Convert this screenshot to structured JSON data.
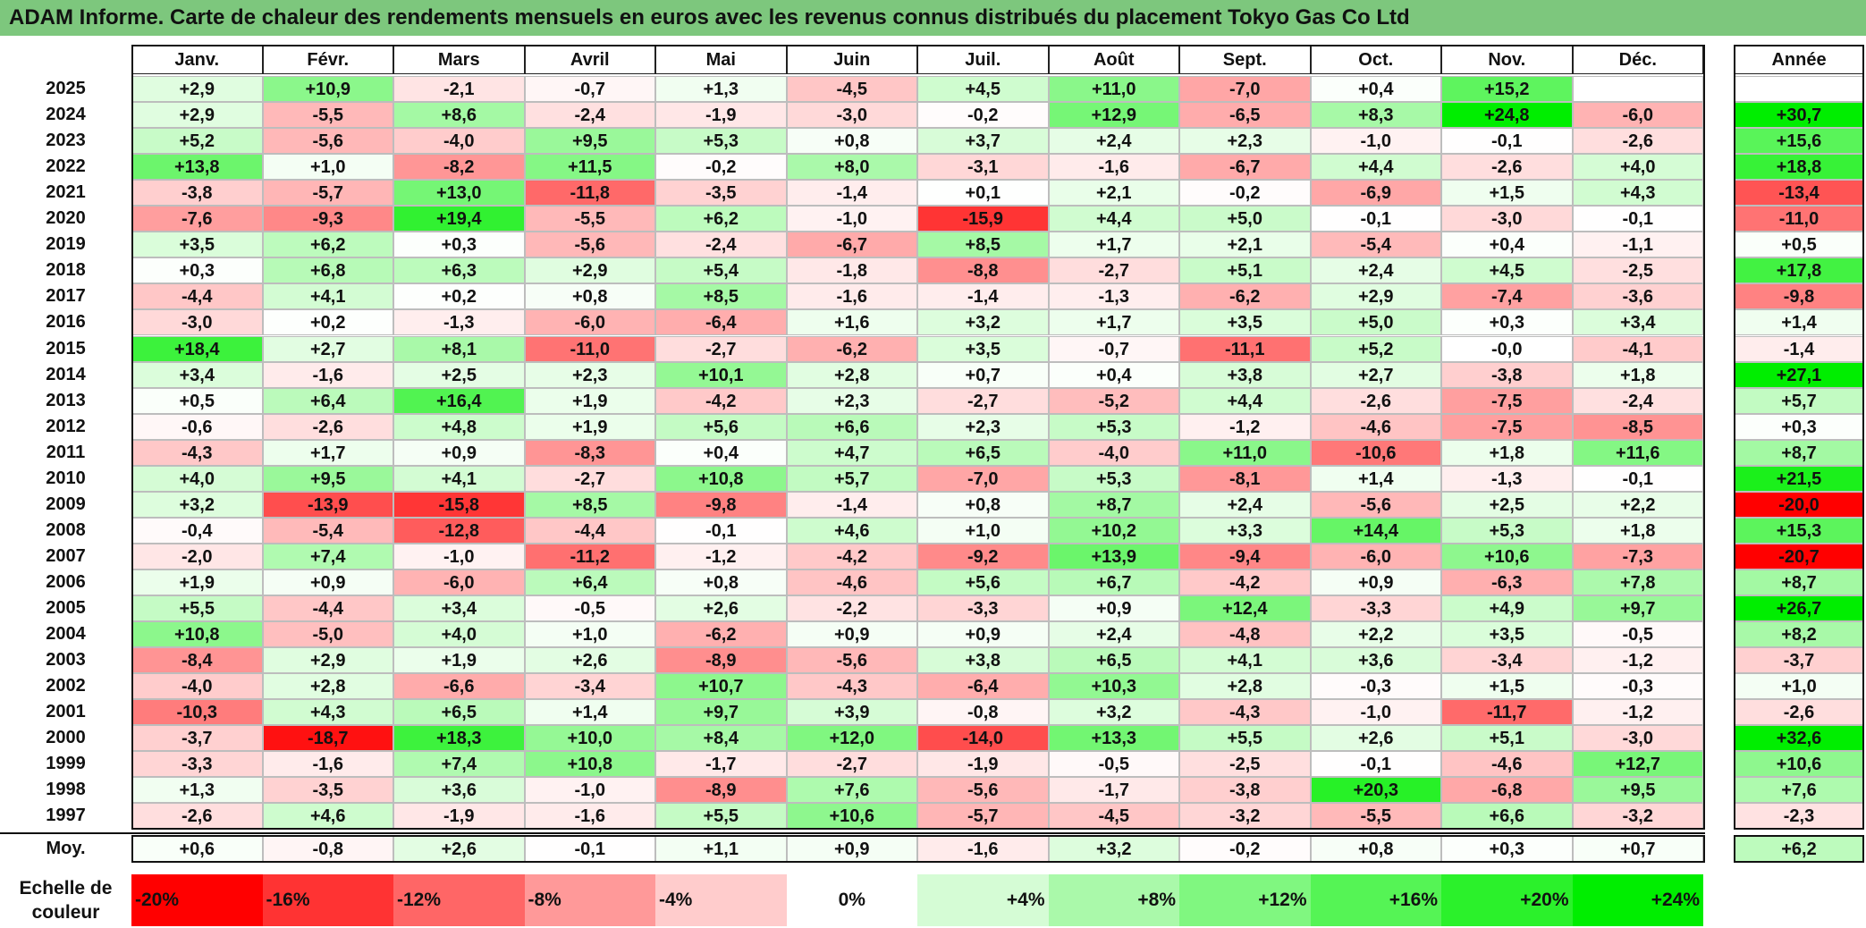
{
  "title": "ADAM Informe. Carte de chaleur des rendements mensuels en euros avec les revenus connus distribués du placement Tokyo Gas Co Ltd",
  "chart_data": {
    "type": "heatmap",
    "title": "ADAM Informe. Carte de chaleur des rendements mensuels en euros avec les revenus connus distribués du placement Tokyo Gas Co Ltd",
    "columns": [
      "Janv.",
      "Févr.",
      "Mars",
      "Avril",
      "Mai",
      "Juin",
      "Juil.",
      "Août",
      "Sept.",
      "Oct.",
      "Nov.",
      "Déc."
    ],
    "year_column_label": "Année",
    "average_row_label": "Moy.",
    "rows": [
      {
        "year": "2025",
        "values": [
          "+2,9",
          "+10,9",
          "-2,1",
          "-0,7",
          "+1,3",
          "-4,5",
          "+4,5",
          "+11,0",
          "-7,0",
          "+0,4",
          "+15,2",
          ""
        ],
        "annual": ""
      },
      {
        "year": "2024",
        "values": [
          "+2,9",
          "-5,5",
          "+8,6",
          "-2,4",
          "-1,9",
          "-3,0",
          "-0,2",
          "+12,9",
          "-6,5",
          "+8,3",
          "+24,8",
          "-6,0"
        ],
        "annual": "+30,7"
      },
      {
        "year": "2023",
        "values": [
          "+5,2",
          "-5,6",
          "-4,0",
          "+9,5",
          "+5,3",
          "+0,8",
          "+3,7",
          "+2,4",
          "+2,3",
          "-1,0",
          "-0,1",
          "-2,6"
        ],
        "annual": "+15,6"
      },
      {
        "year": "2022",
        "values": [
          "+13,8",
          "+1,0",
          "-8,2",
          "+11,5",
          "-0,2",
          "+8,0",
          "-3,1",
          "-1,6",
          "-6,7",
          "+4,4",
          "-2,6",
          "+4,0"
        ],
        "annual": "+18,8"
      },
      {
        "year": "2021",
        "values": [
          "-3,8",
          "-5,7",
          "+13,0",
          "-11,8",
          "-3,5",
          "-1,4",
          "+0,1",
          "+2,1",
          "-0,2",
          "-6,9",
          "+1,5",
          "+4,3"
        ],
        "annual": "-13,4"
      },
      {
        "year": "2020",
        "values": [
          "-7,6",
          "-9,3",
          "+19,4",
          "-5,5",
          "+6,2",
          "-1,0",
          "-15,9",
          "+4,4",
          "+5,0",
          "-0,1",
          "-3,0",
          "-0,1"
        ],
        "annual": "-11,0"
      },
      {
        "year": "2019",
        "values": [
          "+3,5",
          "+6,2",
          "+0,3",
          "-5,6",
          "-2,4",
          "-6,7",
          "+8,5",
          "+1,7",
          "+2,1",
          "-5,4",
          "+0,4",
          "-1,1"
        ],
        "annual": "+0,5"
      },
      {
        "year": "2018",
        "values": [
          "+0,3",
          "+6,8",
          "+6,3",
          "+2,9",
          "+5,4",
          "-1,8",
          "-8,8",
          "-2,7",
          "+5,1",
          "+2,4",
          "+4,5",
          "-2,5"
        ],
        "annual": "+17,8"
      },
      {
        "year": "2017",
        "values": [
          "-4,4",
          "+4,1",
          "+0,2",
          "+0,8",
          "+8,5",
          "-1,6",
          "-1,4",
          "-1,3",
          "-6,2",
          "+2,9",
          "-7,4",
          "-3,6"
        ],
        "annual": "-9,8"
      },
      {
        "year": "2016",
        "values": [
          "-3,0",
          "+0,2",
          "-1,3",
          "-6,0",
          "-6,4",
          "+1,6",
          "+3,2",
          "+1,7",
          "+3,5",
          "+5,0",
          "+0,3",
          "+3,4"
        ],
        "annual": "+1,4"
      },
      {
        "year": "2015",
        "values": [
          "+18,4",
          "+2,7",
          "+8,1",
          "-11,0",
          "-2,7",
          "-6,2",
          "+3,5",
          "-0,7",
          "-11,1",
          "+5,2",
          "-0,0",
          "-4,1"
        ],
        "annual": "-1,4"
      },
      {
        "year": "2014",
        "values": [
          "+3,4",
          "-1,6",
          "+2,5",
          "+2,3",
          "+10,1",
          "+2,8",
          "+0,7",
          "+0,4",
          "+3,8",
          "+2,7",
          "-3,8",
          "+1,8"
        ],
        "annual": "+27,1"
      },
      {
        "year": "2013",
        "values": [
          "+0,5",
          "+6,4",
          "+16,4",
          "+1,9",
          "-4,2",
          "+2,3",
          "-2,7",
          "-5,2",
          "+4,4",
          "-2,6",
          "-7,5",
          "-2,4"
        ],
        "annual": "+5,7"
      },
      {
        "year": "2012",
        "values": [
          "-0,6",
          "-2,6",
          "+4,8",
          "+1,9",
          "+5,6",
          "+6,6",
          "+2,3",
          "+5,3",
          "-1,2",
          "-4,6",
          "-7,5",
          "-8,5"
        ],
        "annual": "+0,3"
      },
      {
        "year": "2011",
        "values": [
          "-4,3",
          "+1,7",
          "+0,9",
          "-8,3",
          "+0,4",
          "+4,7",
          "+6,5",
          "-4,0",
          "+11,0",
          "-10,6",
          "+1,8",
          "+11,6"
        ],
        "annual": "+8,7"
      },
      {
        "year": "2010",
        "values": [
          "+4,0",
          "+9,5",
          "+4,1",
          "-2,7",
          "+10,8",
          "+5,7",
          "-7,0",
          "+5,3",
          "-8,1",
          "+1,4",
          "-1,3",
          "-0,1"
        ],
        "annual": "+21,5"
      },
      {
        "year": "2009",
        "values": [
          "+3,2",
          "-13,9",
          "-15,8",
          "+8,5",
          "-9,8",
          "-1,4",
          "+0,8",
          "+8,7",
          "+2,4",
          "-5,6",
          "+2,5",
          "+2,2"
        ],
        "annual": "-20,0"
      },
      {
        "year": "2008",
        "values": [
          "-0,4",
          "-5,4",
          "-12,8",
          "-4,4",
          "-0,1",
          "+4,6",
          "+1,0",
          "+10,2",
          "+3,3",
          "+14,4",
          "+5,3",
          "+1,8"
        ],
        "annual": "+15,3"
      },
      {
        "year": "2007",
        "values": [
          "-2,0",
          "+7,4",
          "-1,0",
          "-11,2",
          "-1,2",
          "-4,2",
          "-9,2",
          "+13,9",
          "-9,4",
          "-6,0",
          "+10,6",
          "-7,3"
        ],
        "annual": "-20,7"
      },
      {
        "year": "2006",
        "values": [
          "+1,9",
          "+0,9",
          "-6,0",
          "+6,4",
          "+0,8",
          "-4,6",
          "+5,6",
          "+6,7",
          "-4,2",
          "+0,9",
          "-6,3",
          "+7,8"
        ],
        "annual": "+8,7"
      },
      {
        "year": "2005",
        "values": [
          "+5,5",
          "-4,4",
          "+3,4",
          "-0,5",
          "+2,6",
          "-2,2",
          "-3,3",
          "+0,9",
          "+12,4",
          "-3,3",
          "+4,9",
          "+9,7"
        ],
        "annual": "+26,7"
      },
      {
        "year": "2004",
        "values": [
          "+10,8",
          "-5,0",
          "+4,0",
          "+1,0",
          "-6,2",
          "+0,9",
          "+0,9",
          "+2,4",
          "-4,8",
          "+2,2",
          "+3,5",
          "-0,5"
        ],
        "annual": "+8,2"
      },
      {
        "year": "2003",
        "values": [
          "-8,4",
          "+2,9",
          "+1,9",
          "+2,6",
          "-8,9",
          "-5,6",
          "+3,8",
          "+6,5",
          "+4,1",
          "+3,6",
          "-3,4",
          "-1,2"
        ],
        "annual": "-3,7"
      },
      {
        "year": "2002",
        "values": [
          "-4,0",
          "+2,8",
          "-6,6",
          "-3,4",
          "+10,7",
          "-4,3",
          "-6,4",
          "+10,3",
          "+2,8",
          "-0,3",
          "+1,5",
          "-0,3"
        ],
        "annual": "+1,0"
      },
      {
        "year": "2001",
        "values": [
          "-10,3",
          "+4,3",
          "+6,5",
          "+1,4",
          "+9,7",
          "+3,9",
          "-0,8",
          "+3,2",
          "-4,3",
          "-1,0",
          "-11,7",
          "-1,2"
        ],
        "annual": "-2,6"
      },
      {
        "year": "2000",
        "values": [
          "-3,7",
          "-18,7",
          "+18,3",
          "+10,0",
          "+8,4",
          "+12,0",
          "-14,0",
          "+13,3",
          "+5,5",
          "+2,6",
          "+5,1",
          "-3,0"
        ],
        "annual": "+32,6"
      },
      {
        "year": "1999",
        "values": [
          "-3,3",
          "-1,6",
          "+7,4",
          "+10,8",
          "-1,7",
          "-2,7",
          "-1,9",
          "-0,5",
          "-2,5",
          "-0,1",
          "-4,6",
          "+12,7"
        ],
        "annual": "+10,6"
      },
      {
        "year": "1998",
        "values": [
          "+1,3",
          "-3,5",
          "+3,6",
          "-1,0",
          "-8,9",
          "+7,6",
          "-5,6",
          "-1,7",
          "-3,8",
          "+20,3",
          "-6,8",
          "+9,5"
        ],
        "annual": "+7,6"
      },
      {
        "year": "1997",
        "values": [
          "-2,6",
          "+4,6",
          "-1,9",
          "-1,6",
          "+5,5",
          "+10,6",
          "-5,7",
          "-4,5",
          "-3,2",
          "-5,5",
          "+6,6",
          "-3,2"
        ],
        "annual": "-2,3"
      }
    ],
    "averages": [
      "+0,6",
      "-0,8",
      "+2,6",
      "-0,1",
      "+1,1",
      "+0,9",
      "-1,6",
      "+3,2",
      "-0,2",
      "+0,8",
      "+0,3",
      "+0,7"
    ],
    "average_annual": "+6,2",
    "legend": {
      "label": "Echelle de couleur",
      "stops": [
        "-20%",
        "-16%",
        "-12%",
        "-8%",
        "-4%",
        "0%",
        "+4%",
        "+8%",
        "+12%",
        "+16%",
        "+20%",
        "+24%"
      ],
      "values": [
        -20,
        -16,
        -12,
        -8,
        -4,
        0,
        4,
        8,
        12,
        16,
        20,
        24
      ]
    },
    "color_scale": {
      "negative_max": "#ff0000",
      "neutral": "#ffffff",
      "positive_max": "#00ee00"
    }
  }
}
